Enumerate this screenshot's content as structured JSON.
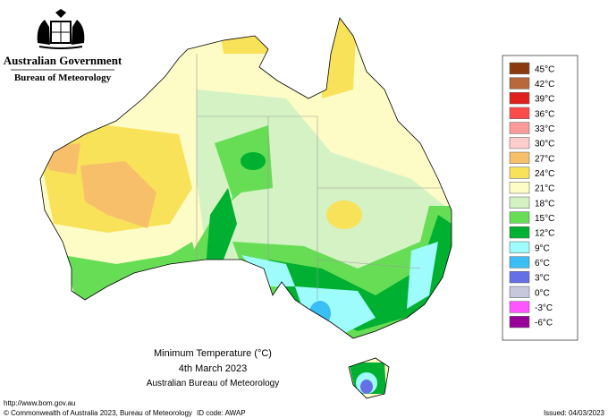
{
  "header": {
    "government": "Australian Government",
    "agency": "Bureau of Meteorology"
  },
  "legend": {
    "items": [
      {
        "label": "45°C",
        "color": "#8b3a0f"
      },
      {
        "label": "42°C",
        "color": "#b8683a"
      },
      {
        "label": "39°C",
        "color": "#e0201e"
      },
      {
        "label": "36°C",
        "color": "#ff4a4a"
      },
      {
        "label": "33°C",
        "color": "#ff9a9a"
      },
      {
        "label": "30°C",
        "color": "#ffcccc"
      },
      {
        "label": "27°C",
        "color": "#f7bf6a"
      },
      {
        "label": "24°C",
        "color": "#f8e25a"
      },
      {
        "label": "21°C",
        "color": "#fdfcc6"
      },
      {
        "label": "18°C",
        "color": "#d4f2c4"
      },
      {
        "label": "15°C",
        "color": "#66dd55"
      },
      {
        "label": "12°C",
        "color": "#00b030"
      },
      {
        "label": "9°C",
        "color": "#9ffcfc"
      },
      {
        "label": "6°C",
        "color": "#3bbdf5"
      },
      {
        "label": "3°C",
        "color": "#6670e6"
      },
      {
        "label": "0°C",
        "color": "#c8c8dc"
      },
      {
        "label": "-3°C",
        "color": "#ff55ff"
      },
      {
        "label": "-6°C",
        "color": "#990099"
      }
    ]
  },
  "title": {
    "line1": "Minimum Temperature (°C)",
    "line2": "4th March 2023",
    "line3": "Australian Bureau of Meteorology"
  },
  "footer": {
    "url": "http://www.bom.gov.au",
    "copyright": "© Commonwealth of Australia 2023, Bureau of Meteorology",
    "id_code": "ID code: AWAP",
    "issued": "Issued: 04/03/2023"
  }
}
